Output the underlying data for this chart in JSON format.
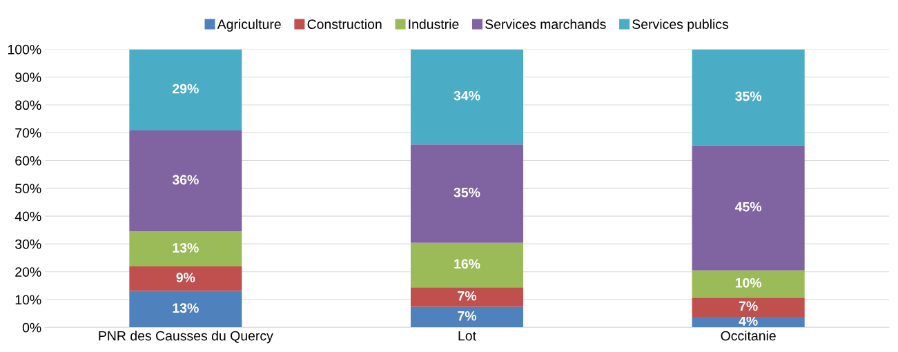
{
  "chart_data": {
    "type": "bar",
    "stacked": true,
    "categories": [
      "PNR des Causses du Quercy",
      "Lot",
      "Occitanie"
    ],
    "series": [
      {
        "name": "Agriculture",
        "color": "#4f81bd",
        "values": [
          13.1,
          7.4,
          3.8
        ],
        "value_labels": [
          "13%",
          "7%",
          "4%"
        ]
      },
      {
        "name": "Construction",
        "color": "#c0504d",
        "values": [
          8.8,
          7.0,
          6.9
        ],
        "value_labels": [
          "9%",
          "7%",
          "7%"
        ]
      },
      {
        "name": "Industrie",
        "color": "#9bbb59",
        "values": [
          12.6,
          16.0,
          9.8
        ],
        "value_labels": [
          "13%",
          "16%",
          "10%"
        ]
      },
      {
        "name": "Services marchands",
        "color": "#8064a2",
        "values": [
          36.3,
          35.4,
          44.9
        ],
        "value_labels": [
          "36%",
          "35%",
          "45%"
        ]
      },
      {
        "name": "Services publics",
        "color": "#4bacc6",
        "values": [
          29.2,
          34.2,
          34.6
        ],
        "value_labels": [
          "29%",
          "34%",
          "35%"
        ]
      }
    ],
    "ylim": [
      0,
      100
    ],
    "yticks": [
      {
        "value": 0,
        "label": "0%"
      },
      {
        "value": 10,
        "label": "10%"
      },
      {
        "value": 20,
        "label": "20%"
      },
      {
        "value": 30,
        "label": "30%"
      },
      {
        "value": 40,
        "label": "40%"
      },
      {
        "value": 50,
        "label": "50%"
      },
      {
        "value": 60,
        "label": "60%"
      },
      {
        "value": 70,
        "label": "70%"
      },
      {
        "value": 80,
        "label": "80%"
      },
      {
        "value": 90,
        "label": "90%"
      },
      {
        "value": 100,
        "label": "100%"
      }
    ],
    "grid": "y",
    "legend": "top"
  }
}
